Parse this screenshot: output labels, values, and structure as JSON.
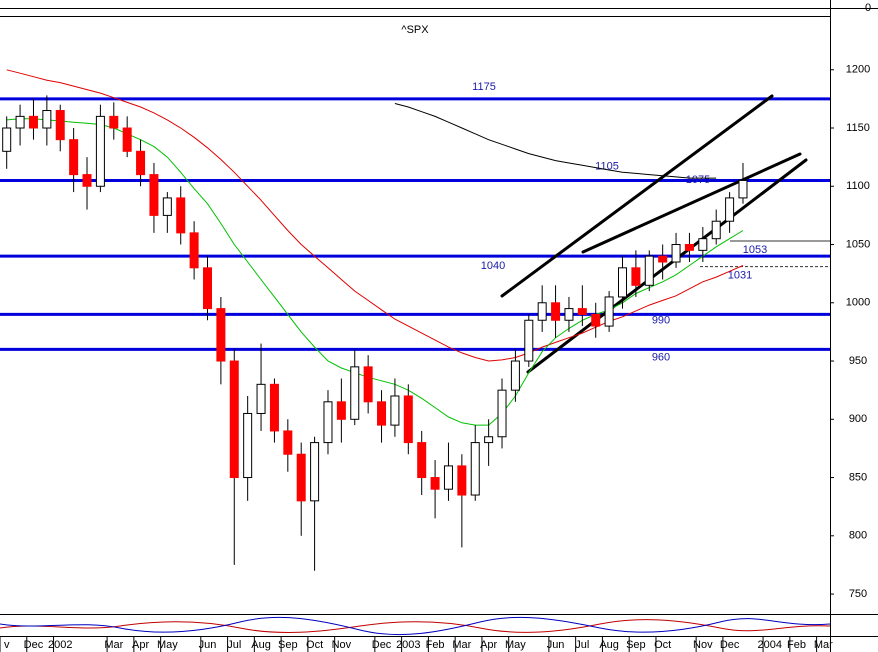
{
  "chart_data": {
    "type": "candlestick",
    "title": "^SPX",
    "categories": [
      "v",
      null,
      "Dec",
      null,
      "2002",
      null,
      null,
      null,
      "Mar",
      null,
      "Apr",
      null,
      "May",
      null,
      null,
      "Jun",
      null,
      "Jul",
      null,
      "Aug",
      null,
      "Sep",
      null,
      "Oct",
      null,
      "Nov",
      null,
      null,
      "Dec",
      null,
      "2003",
      null,
      "Feb",
      null,
      "Mar",
      null,
      "Apr",
      null,
      "May",
      null,
      null,
      "Jun",
      null,
      "Jul",
      null,
      "Aug",
      null,
      "Sep",
      null,
      "Oct",
      null,
      null,
      "Nov",
      null,
      "Dec",
      null,
      null,
      "2004",
      null,
      "Feb",
      null,
      "Mar"
    ],
    "candles": [
      [
        1130,
        1160,
        1115,
        1150
      ],
      [
        1150,
        1170,
        1135,
        1160
      ],
      [
        1160,
        1175,
        1140,
        1150
      ],
      [
        1150,
        1178,
        1135,
        1165
      ],
      [
        1165,
        1170,
        1130,
        1140
      ],
      [
        1140,
        1150,
        1095,
        1110
      ],
      [
        1110,
        1125,
        1080,
        1100
      ],
      [
        1100,
        1170,
        1095,
        1160
      ],
      [
        1160,
        1172,
        1140,
        1150
      ],
      [
        1150,
        1160,
        1125,
        1130
      ],
      [
        1130,
        1140,
        1100,
        1110
      ],
      [
        1110,
        1120,
        1060,
        1075
      ],
      [
        1075,
        1095,
        1060,
        1090
      ],
      [
        1090,
        1100,
        1050,
        1060
      ],
      [
        1060,
        1070,
        1020,
        1030
      ],
      [
        1030,
        1040,
        985,
        995
      ],
      [
        995,
        1005,
        930,
        950
      ],
      [
        950,
        960,
        775,
        850
      ],
      [
        850,
        920,
        830,
        905
      ],
      [
        905,
        965,
        890,
        930
      ],
      [
        930,
        935,
        880,
        890
      ],
      [
        890,
        900,
        855,
        870
      ],
      [
        870,
        880,
        800,
        830
      ],
      [
        830,
        885,
        770,
        880
      ],
      [
        880,
        925,
        870,
        915
      ],
      [
        915,
        935,
        880,
        900
      ],
      [
        900,
        960,
        895,
        945
      ],
      [
        945,
        955,
        905,
        915
      ],
      [
        915,
        925,
        880,
        895
      ],
      [
        895,
        935,
        885,
        920
      ],
      [
        920,
        930,
        870,
        880
      ],
      [
        880,
        890,
        835,
        850
      ],
      [
        850,
        865,
        815,
        840
      ],
      [
        840,
        880,
        830,
        860
      ],
      [
        860,
        870,
        790,
        835
      ],
      [
        835,
        895,
        830,
        880
      ],
      [
        880,
        900,
        860,
        885
      ],
      [
        885,
        935,
        875,
        925
      ],
      [
        925,
        960,
        915,
        950
      ],
      [
        950,
        990,
        945,
        985
      ],
      [
        985,
        1015,
        975,
        1000
      ],
      [
        1000,
        1015,
        970,
        985
      ],
      [
        985,
        1005,
        975,
        995
      ],
      [
        995,
        1015,
        980,
        990
      ],
      [
        990,
        1000,
        970,
        980
      ],
      [
        980,
        1010,
        975,
        1005
      ],
      [
        1005,
        1040,
        995,
        1030
      ],
      [
        1030,
        1045,
        1005,
        1015
      ],
      [
        1015,
        1045,
        1010,
        1040
      ],
      [
        1040,
        1050,
        1020,
        1035
      ],
      [
        1035,
        1060,
        1030,
        1050
      ],
      [
        1050,
        1060,
        1035,
        1045
      ],
      [
        1045,
        1065,
        1035,
        1055
      ],
      [
        1055,
        1080,
        1050,
        1070
      ],
      [
        1070,
        1095,
        1060,
        1090
      ],
      [
        1090,
        1120,
        1085,
        1105
      ],
      null,
      null,
      null,
      null,
      null,
      null
    ],
    "up_color": "#ffffff",
    "down_color": "#ff0000",
    "lines": [
      {
        "color": "#e00000",
        "values": [
          1200,
          1197,
          1194,
          1191,
          1189,
          1186,
          1183,
          1180,
          1176,
          1172,
          1168,
          1163,
          1157,
          1150,
          1142,
          1133,
          1123,
          1112,
          1100,
          1088,
          1075,
          1062,
          1050,
          1040,
          1030,
          1020,
          1010,
          1002,
          994,
          986,
          980,
          974,
          968,
          962,
          957,
          953,
          950,
          951,
          953,
          957,
          962,
          966,
          970,
          974,
          979,
          984,
          988,
          993,
          998,
          1002,
          1006,
          1012,
          1018,
          1022,
          1027,
          1032,
          null,
          null,
          null,
          null,
          null,
          null
        ]
      },
      {
        "color": "#00c000",
        "values": [
          1157,
          1158,
          1158,
          1157,
          1156,
          1155,
          1154,
          1153,
          1150,
          1145,
          1140,
          1134,
          1125,
          1112,
          1098,
          1085,
          1068,
          1050,
          1035,
          1020,
          1005,
          990,
          975,
          962,
          950,
          944,
          940,
          936,
          933,
          930,
          925,
          918,
          910,
          902,
          897,
          895,
          895,
          905,
          920,
          940,
          958,
          970,
          978,
          985,
          990,
          994,
          1000,
          1008,
          1013,
          1018,
          1024,
          1032,
          1040,
          1048,
          1055,
          1062,
          null,
          null,
          null,
          null,
          null,
          null
        ]
      },
      {
        "color": "#000000",
        "values": [
          null,
          null,
          null,
          null,
          null,
          null,
          null,
          null,
          null,
          null,
          null,
          null,
          null,
          null,
          null,
          null,
          null,
          null,
          null,
          null,
          null,
          null,
          null,
          null,
          null,
          null,
          null,
          null,
          null,
          1171,
          1168,
          1164,
          1160,
          1155,
          1150,
          1145,
          1140,
          1136,
          1132,
          1128,
          1125,
          1122,
          1120,
          1118,
          1116,
          1114,
          1112,
          1111,
          1110,
          1109,
          1108,
          1107,
          1107,
          1107,
          null,
          null,
          null,
          null,
          null,
          null,
          null,
          null
        ]
      }
    ],
    "levels": [
      1175,
      1105,
      1040,
      990,
      960
    ],
    "level_color": "#0000dd",
    "support_levels": [
      1053,
      1031
    ],
    "annotations": [
      1075
    ],
    "ylim": [
      714,
      1253
    ],
    "yticks": [
      750,
      800,
      850,
      900,
      950,
      1000,
      1050,
      1100,
      1150,
      1200
    ],
    "volume_yticks": [
      0
    ]
  }
}
